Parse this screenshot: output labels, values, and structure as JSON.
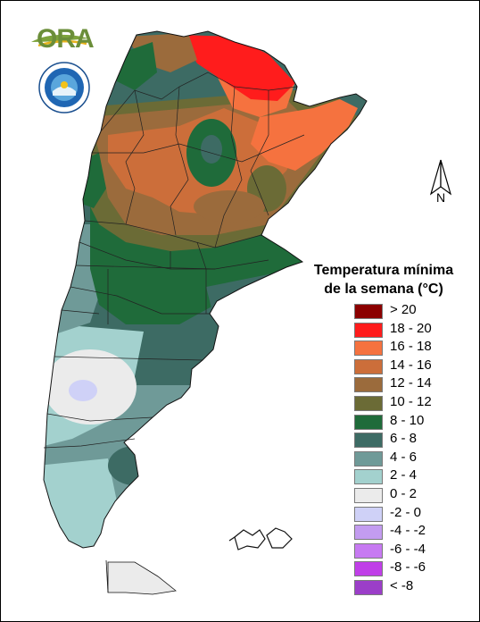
{
  "logo": {
    "brand": "ORA",
    "seal_text": "SERVICIO METEOROLÓGICO NACIONAL ARGENTINA"
  },
  "north_arrow": {
    "label": "N"
  },
  "legend": {
    "title_line1": "Temperatura mínima",
    "title_line2": "de la semana (°C)",
    "items": [
      {
        "label": "> 20",
        "color": "#8b0000"
      },
      {
        "label": "18 - 20",
        "color": "#ff1c1c"
      },
      {
        "label": "16 - 18",
        "color": "#f5723f"
      },
      {
        "label": "14 - 16",
        "color": "#cc6e3a"
      },
      {
        "label": "12 - 14",
        "color": "#9b6b3c"
      },
      {
        "label": "10 - 12",
        "color": "#6b6b36"
      },
      {
        "label": "8 - 10",
        "color": "#1f6b3a"
      },
      {
        "label": "6 - 8",
        "color": "#3d6b64"
      },
      {
        "label": "4 - 6",
        "color": "#6f9a98"
      },
      {
        "label": "2 - 4",
        "color": "#a3d1ce"
      },
      {
        "label": "0 - 2",
        "color": "#ebebeb"
      },
      {
        "label": "-2 - 0",
        "color": "#cfd1f7"
      },
      {
        "label": "-4 - -2",
        "color": "#c39cf0"
      },
      {
        "label": "-6 - -4",
        "color": "#c77af2"
      },
      {
        "label": "-8 - -6",
        "color": "#c03fe8"
      },
      {
        "label": "< -8",
        "color": "#9b3ec8"
      }
    ]
  }
}
